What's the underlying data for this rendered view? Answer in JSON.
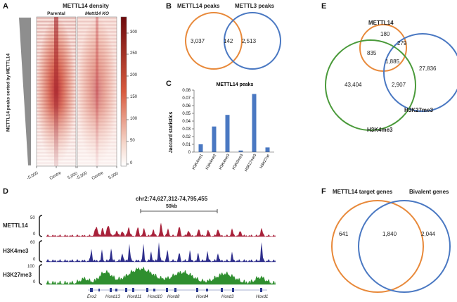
{
  "panels": {
    "A": {
      "letter": "A",
      "title": "METTL14 density",
      "col_left": "Parental",
      "col_right": "Mettl14 KO",
      "side_label": "METTL14 peaks sorted by METTL14",
      "xticks_left": [
        "-5,000",
        "Centre",
        "5,000"
      ],
      "xticks_right": [
        "-5,000",
        "Centre",
        "5,000"
      ],
      "colorbar_ticks": [
        "300",
        "250",
        "200",
        "150",
        "100",
        "50",
        "0"
      ],
      "colors": {
        "high": "#8b0f12",
        "low": "#ffffff"
      }
    },
    "B": {
      "letter": "B",
      "label_left": "METTL14 peaks",
      "label_right": "METTL3 peaks",
      "left_only": "3,037",
      "overlap": "142",
      "right_only": "2,513",
      "colors": {
        "left": "#e8893a",
        "right": "#4a78c2"
      }
    },
    "C": {
      "letter": "C",
      "chart_data": {
        "type": "bar",
        "title": "METTL14 peaks",
        "ylabel": "Jaccard statistics",
        "categories": [
          "H3K4me1",
          "H3K4me2",
          "H3K4me3",
          "H3K9me3",
          "H3K27me3",
          "H3K27ac"
        ],
        "values": [
          0.01,
          0.033,
          0.048,
          0.002,
          0.075,
          0.006
        ],
        "ylim": [
          0,
          0.08
        ],
        "yticks": [
          "0",
          "0.01",
          "0.02",
          "0.03",
          "0.04",
          "0.05",
          "0.06",
          "0.07",
          "0.08"
        ],
        "color": "#4a78c2"
      }
    },
    "D": {
      "letter": "D",
      "locus": "chr2:74,627,312-74,795,455",
      "scale": "50kb",
      "tracks": [
        {
          "name": "METTL14",
          "max": "50",
          "min": "0",
          "color": "#a8213a"
        },
        {
          "name": "H3K4me3",
          "max": "60",
          "min": "0",
          "color": "#2e2e8c"
        },
        {
          "name": "H3K27me3",
          "max": "100",
          "min": "0",
          "color": "#2f8f2f"
        }
      ],
      "genes": [
        "Evx2",
        "Hoxd13",
        "Hoxd11",
        "Hoxd10",
        "Hoxd8",
        "Hoxd4",
        "Hoxd3",
        "Hoxd1"
      ]
    },
    "E": {
      "letter": "E",
      "label_top": "METTL14",
      "label_right": "H3K27me3",
      "label_left": "H3K4me3",
      "values": {
        "mettl14_only": "180",
        "mettl14_h3k4": "835",
        "mettl14_h3k27": "279",
        "all_three": "1,885",
        "h3k4_only": "43,404",
        "h3k4_h3k27": "2,907",
        "h3k27_only": "27,836"
      },
      "colors": {
        "top": "#e8893a",
        "right": "#4a78c2",
        "left": "#4a9a3a"
      }
    },
    "F": {
      "letter": "F",
      "label_left": "METTL14 target genes",
      "label_right": "Bivalent genes",
      "left_only": "641",
      "overlap": "1,840",
      "right_only": "2,044",
      "colors": {
        "left": "#e8893a",
        "right": "#4a78c2"
      }
    }
  }
}
